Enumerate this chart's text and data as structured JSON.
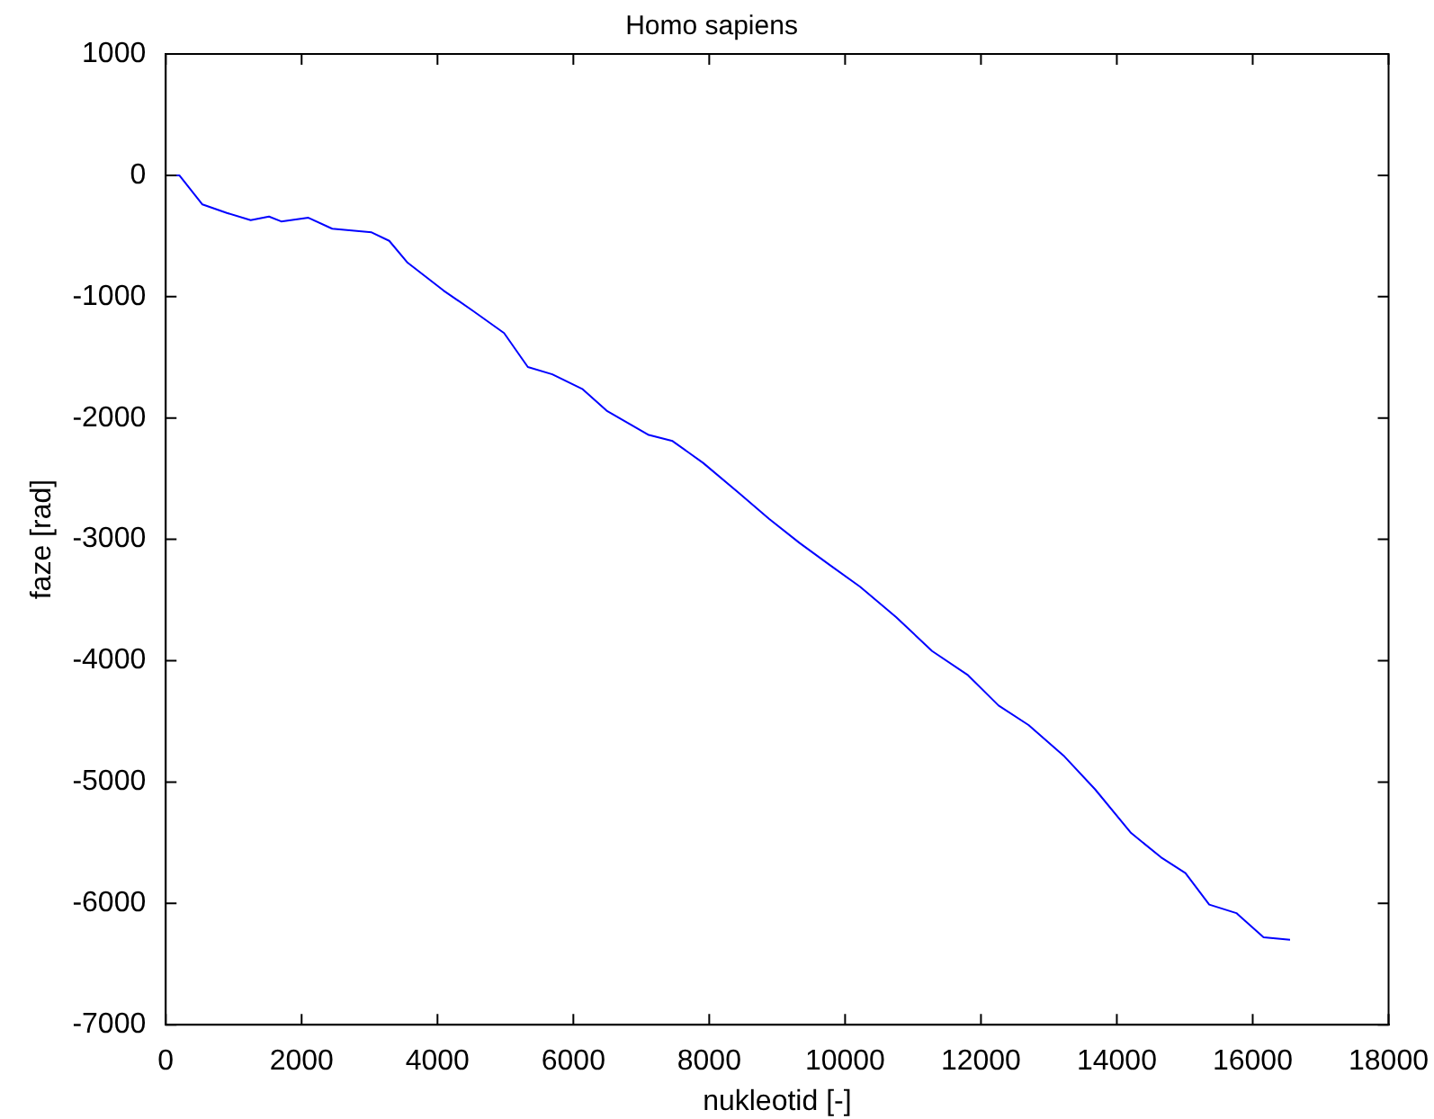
{
  "chart_data": {
    "type": "line",
    "title": "Homo sapiens",
    "xlabel": "nukleotid [-]",
    "ylabel": "faze [rad]",
    "xlim": [
      0,
      18000
    ],
    "xticks": [
      0,
      2000,
      4000,
      6000,
      8000,
      10000,
      12000,
      14000,
      16000,
      18000
    ],
    "ylim": [
      -7000,
      1000
    ],
    "yticks": [
      -7000,
      -6000,
      -5000,
      -4000,
      -3000,
      -2000,
      -1000,
      0,
      1000
    ],
    "grid": false,
    "legend": false,
    "marker": "none",
    "line_style": "solid",
    "series": [
      {
        "color": "#0000ff",
        "x": [
          100,
          200,
          540,
          900,
          1250,
          1520,
          1700,
          2100,
          2450,
          3030,
          3290,
          3560,
          4090,
          4530,
          4980,
          5330,
          5690,
          6130,
          6490,
          7110,
          7460,
          7910,
          8440,
          8880,
          9330,
          9770,
          10220,
          10750,
          11280,
          11810,
          12260,
          12700,
          13230,
          13680,
          14210,
          14650,
          15010,
          15360,
          15760,
          16160,
          16550
        ],
        "values": [
          0,
          0,
          -240,
          -310,
          -370,
          -340,
          -380,
          -350,
          -440,
          -470,
          -540,
          -720,
          -950,
          -1120,
          -1300,
          -1580,
          -1640,
          -1760,
          -1940,
          -2140,
          -2190,
          -2370,
          -2620,
          -2830,
          -3030,
          -3210,
          -3390,
          -3640,
          -3920,
          -4120,
          -4370,
          -4530,
          -4790,
          -5060,
          -5420,
          -5620,
          -5750,
          -6010,
          -6080,
          -6280,
          -6300
        ]
      }
    ]
  }
}
